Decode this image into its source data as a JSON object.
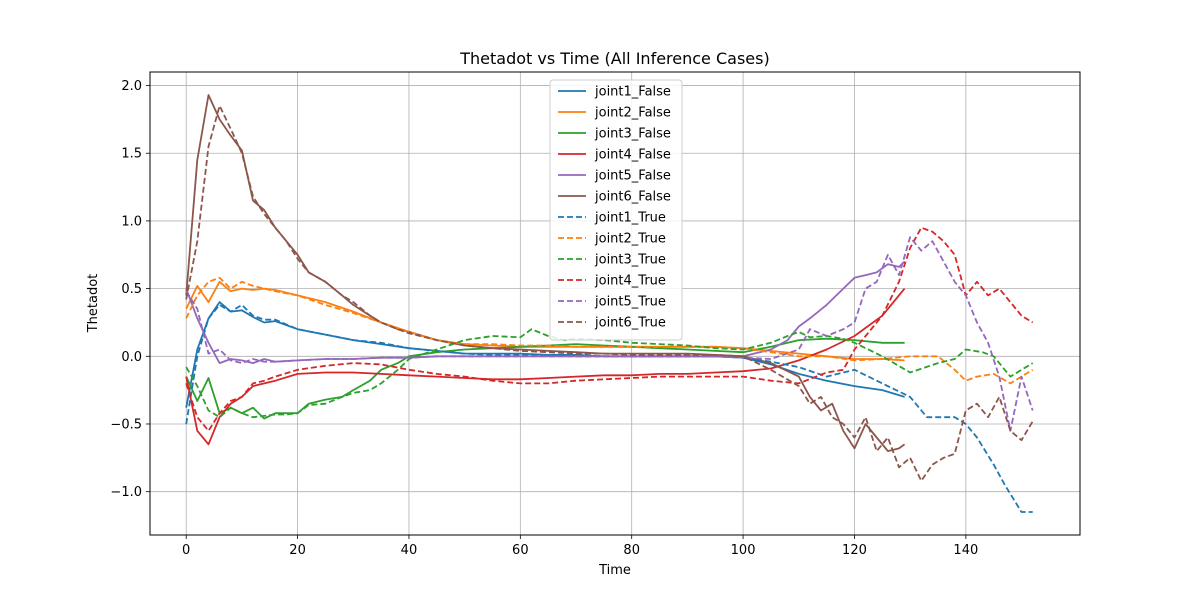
{
  "chart_data": {
    "type": "line",
    "title": "Thetadot vs Time (All Inference Cases)",
    "xlabel": "Time",
    "ylabel": "Thetadot",
    "xlim": [
      -6.5,
      160.5
    ],
    "ylim": [
      -1.32,
      2.1
    ],
    "xticks": [
      0,
      20,
      40,
      60,
      80,
      100,
      120,
      140
    ],
    "yticks": [
      -1.0,
      -0.5,
      0.0,
      0.5,
      1.0,
      1.5,
      2.0
    ],
    "xtick_labels": [
      "0",
      "20",
      "40",
      "60",
      "80",
      "100",
      "120",
      "140"
    ],
    "ytick_labels": [
      "−1.0",
      "−0.5",
      "0.0",
      "0.5",
      "1.0",
      "1.5",
      "2.0"
    ],
    "grid": true,
    "legend_position": "upper-center",
    "series": [
      {
        "name": "joint1_False",
        "color": "#1f77b4",
        "style": "solid",
        "x": [
          0,
          2,
          4,
          6,
          8,
          10,
          12,
          14,
          16,
          20,
          25,
          30,
          35,
          40,
          45,
          50,
          55,
          60,
          65,
          70,
          75,
          80,
          85,
          90,
          95,
          100,
          105,
          110,
          115,
          120,
          125,
          129
        ],
        "y": [
          -0.38,
          0.05,
          0.28,
          0.4,
          0.33,
          0.34,
          0.29,
          0.25,
          0.26,
          0.2,
          0.16,
          0.12,
          0.09,
          0.06,
          0.04,
          0.02,
          0.02,
          0.02,
          0.01,
          0.01,
          0.0,
          0.0,
          0.0,
          0.0,
          0.0,
          -0.01,
          -0.06,
          -0.13,
          -0.18,
          -0.22,
          -0.25,
          -0.3
        ]
      },
      {
        "name": "joint2_False",
        "color": "#ff7f0e",
        "style": "solid",
        "x": [
          0,
          2,
          4,
          6,
          8,
          10,
          12,
          14,
          16,
          20,
          25,
          30,
          35,
          40,
          45,
          50,
          55,
          60,
          65,
          70,
          75,
          80,
          85,
          90,
          95,
          100,
          105,
          110,
          115,
          120,
          125,
          129
        ],
        "y": [
          0.35,
          0.52,
          0.4,
          0.55,
          0.48,
          0.5,
          0.49,
          0.5,
          0.49,
          0.45,
          0.4,
          0.33,
          0.25,
          0.18,
          0.12,
          0.09,
          0.08,
          0.07,
          0.07,
          0.07,
          0.07,
          0.07,
          0.07,
          0.07,
          0.07,
          0.06,
          0.04,
          0.02,
          0.0,
          -0.02,
          -0.02,
          -0.03
        ]
      },
      {
        "name": "joint3_False",
        "color": "#2ca02c",
        "style": "solid",
        "x": [
          0,
          2,
          4,
          6,
          8,
          10,
          12,
          14,
          16,
          18,
          20,
          22,
          25,
          28,
          30,
          33,
          35,
          38,
          40,
          45,
          50,
          55,
          60,
          65,
          70,
          75,
          80,
          85,
          90,
          95,
          100,
          105,
          110,
          115,
          120,
          125,
          129
        ],
        "y": [
          -0.15,
          -0.33,
          -0.16,
          -0.42,
          -0.38,
          -0.42,
          -0.38,
          -0.46,
          -0.42,
          -0.42,
          -0.42,
          -0.35,
          -0.32,
          -0.3,
          -0.25,
          -0.18,
          -0.1,
          -0.05,
          0.0,
          0.03,
          0.05,
          0.06,
          0.07,
          0.08,
          0.09,
          0.08,
          0.07,
          0.06,
          0.05,
          0.04,
          0.03,
          0.07,
          0.12,
          0.13,
          0.12,
          0.1,
          0.1
        ]
      },
      {
        "name": "joint4_False",
        "color": "#d62728",
        "style": "solid",
        "x": [
          0,
          2,
          4,
          6,
          8,
          10,
          12,
          14,
          16,
          20,
          25,
          30,
          35,
          40,
          45,
          50,
          55,
          60,
          65,
          70,
          75,
          80,
          85,
          90,
          95,
          100,
          105,
          110,
          115,
          120,
          125,
          129
        ],
        "y": [
          -0.15,
          -0.55,
          -0.65,
          -0.45,
          -0.35,
          -0.3,
          -0.22,
          -0.2,
          -0.18,
          -0.13,
          -0.12,
          -0.12,
          -0.13,
          -0.14,
          -0.15,
          -0.16,
          -0.17,
          -0.17,
          -0.16,
          -0.15,
          -0.14,
          -0.14,
          -0.13,
          -0.13,
          -0.12,
          -0.11,
          -0.09,
          -0.03,
          0.05,
          0.15,
          0.3,
          0.5
        ]
      },
      {
        "name": "joint5_False",
        "color": "#9467bd",
        "style": "solid",
        "x": [
          0,
          2,
          4,
          6,
          8,
          10,
          12,
          14,
          16,
          20,
          25,
          30,
          35,
          40,
          45,
          50,
          55,
          60,
          65,
          70,
          75,
          80,
          85,
          90,
          95,
          100,
          105,
          108,
          110,
          112,
          115,
          118,
          120,
          122,
          124,
          126,
          128,
          129
        ],
        "y": [
          0.5,
          0.28,
          0.1,
          -0.05,
          -0.02,
          -0.03,
          -0.05,
          -0.02,
          -0.04,
          -0.03,
          -0.02,
          -0.02,
          -0.01,
          -0.01,
          0.0,
          0.0,
          0.0,
          0.0,
          0.0,
          0.0,
          0.0,
          0.0,
          0.0,
          0.0,
          0.0,
          0.0,
          0.05,
          0.12,
          0.22,
          0.28,
          0.38,
          0.5,
          0.58,
          0.6,
          0.62,
          0.68,
          0.66,
          0.7
        ]
      },
      {
        "name": "joint6_False",
        "color": "#8c564b",
        "style": "solid",
        "x": [
          0,
          2,
          4,
          6,
          8,
          10,
          12,
          14,
          16,
          18,
          20,
          22,
          25,
          28,
          30,
          33,
          35,
          38,
          40,
          45,
          50,
          55,
          60,
          65,
          70,
          75,
          80,
          85,
          90,
          95,
          100,
          105,
          110,
          112,
          114,
          116,
          118,
          120,
          122,
          124,
          126,
          128,
          129
        ],
        "y": [
          0.45,
          1.45,
          1.93,
          1.75,
          1.63,
          1.52,
          1.15,
          1.08,
          0.95,
          0.85,
          0.75,
          0.62,
          0.55,
          0.45,
          0.38,
          0.3,
          0.25,
          0.2,
          0.18,
          0.12,
          0.08,
          0.06,
          0.05,
          0.04,
          0.03,
          0.02,
          0.02,
          0.02,
          0.02,
          0.01,
          0.0,
          -0.05,
          -0.15,
          -0.3,
          -0.4,
          -0.35,
          -0.55,
          -0.68,
          -0.5,
          -0.6,
          -0.7,
          -0.68,
          -0.65
        ]
      },
      {
        "name": "joint1_True",
        "color": "#1f77b4",
        "style": "dashed",
        "x": [
          0,
          2,
          4,
          6,
          8,
          10,
          12,
          14,
          16,
          20,
          25,
          30,
          35,
          40,
          45,
          50,
          55,
          60,
          65,
          70,
          75,
          80,
          85,
          90,
          95,
          100,
          105,
          110,
          115,
          120,
          125,
          130,
          133,
          136,
          138,
          140,
          142,
          145,
          147,
          150,
          152
        ],
        "y": [
          -0.5,
          0.0,
          0.28,
          0.38,
          0.33,
          0.38,
          0.3,
          0.27,
          0.27,
          0.2,
          0.16,
          0.12,
          0.1,
          0.06,
          0.04,
          0.02,
          0.01,
          0.01,
          0.01,
          0.0,
          0.0,
          0.0,
          0.0,
          0.0,
          0.0,
          -0.01,
          -0.04,
          -0.08,
          -0.15,
          -0.1,
          -0.2,
          -0.3,
          -0.45,
          -0.45,
          -0.45,
          -0.5,
          -0.6,
          -0.8,
          -0.95,
          -1.15,
          -1.15
        ]
      },
      {
        "name": "joint2_True",
        "color": "#ff7f0e",
        "style": "dashed",
        "x": [
          0,
          2,
          4,
          6,
          8,
          10,
          12,
          14,
          16,
          20,
          25,
          30,
          35,
          40,
          45,
          50,
          55,
          60,
          65,
          70,
          75,
          80,
          85,
          90,
          95,
          100,
          105,
          110,
          115,
          120,
          125,
          130,
          135,
          138,
          140,
          142,
          145,
          148,
          150,
          152
        ],
        "y": [
          0.28,
          0.45,
          0.55,
          0.58,
          0.5,
          0.55,
          0.52,
          0.5,
          0.48,
          0.45,
          0.38,
          0.32,
          0.25,
          0.18,
          0.12,
          0.09,
          0.09,
          0.08,
          0.08,
          0.07,
          0.07,
          0.07,
          0.07,
          0.07,
          0.07,
          0.06,
          0.03,
          0.0,
          0.0,
          -0.03,
          -0.02,
          0.0,
          0.0,
          -0.1,
          -0.18,
          -0.15,
          -0.13,
          -0.2,
          -0.15,
          -0.1
        ]
      },
      {
        "name": "joint3_True",
        "color": "#2ca02c",
        "style": "dashed",
        "x": [
          0,
          2,
          4,
          6,
          8,
          10,
          12,
          14,
          16,
          18,
          20,
          22,
          25,
          28,
          30,
          33,
          35,
          38,
          40,
          45,
          50,
          55,
          60,
          62,
          65,
          68,
          70,
          75,
          80,
          85,
          90,
          95,
          100,
          105,
          108,
          110,
          112,
          115,
          118,
          120,
          125,
          130,
          135,
          138,
          140,
          143,
          145,
          148,
          150,
          152
        ],
        "y": [
          -0.08,
          -0.22,
          -0.4,
          -0.45,
          -0.38,
          -0.42,
          -0.45,
          -0.44,
          -0.43,
          -0.43,
          -0.42,
          -0.36,
          -0.35,
          -0.3,
          -0.27,
          -0.25,
          -0.2,
          -0.1,
          -0.02,
          0.05,
          0.12,
          0.15,
          0.14,
          0.2,
          0.15,
          0.12,
          0.13,
          0.12,
          0.1,
          0.09,
          0.08,
          0.06,
          0.05,
          0.1,
          0.15,
          0.18,
          0.14,
          0.15,
          0.13,
          0.1,
          0.0,
          -0.12,
          -0.05,
          -0.02,
          0.05,
          0.03,
          0.0,
          -0.15,
          -0.1,
          -0.05
        ]
      },
      {
        "name": "joint4_True",
        "color": "#d62728",
        "style": "dashed",
        "x": [
          0,
          2,
          4,
          6,
          8,
          10,
          12,
          14,
          16,
          20,
          25,
          30,
          35,
          40,
          45,
          50,
          55,
          60,
          65,
          70,
          75,
          80,
          85,
          90,
          95,
          100,
          105,
          110,
          115,
          118,
          120,
          122,
          125,
          128,
          130,
          132,
          134,
          136,
          138,
          140,
          142,
          144,
          146,
          148,
          150,
          152
        ],
        "y": [
          -0.2,
          -0.45,
          -0.55,
          -0.42,
          -0.33,
          -0.3,
          -0.2,
          -0.18,
          -0.15,
          -0.1,
          -0.07,
          -0.05,
          -0.06,
          -0.1,
          -0.13,
          -0.15,
          -0.18,
          -0.2,
          -0.2,
          -0.18,
          -0.17,
          -0.16,
          -0.15,
          -0.15,
          -0.15,
          -0.15,
          -0.18,
          -0.2,
          -0.12,
          -0.1,
          0.05,
          0.15,
          0.3,
          0.55,
          0.8,
          0.95,
          0.92,
          0.85,
          0.75,
          0.45,
          0.55,
          0.45,
          0.5,
          0.4,
          0.3,
          0.25
        ]
      },
      {
        "name": "joint5_True",
        "color": "#9467bd",
        "style": "dashed",
        "x": [
          0,
          2,
          4,
          6,
          8,
          10,
          12,
          14,
          16,
          20,
          25,
          30,
          35,
          40,
          45,
          50,
          55,
          60,
          65,
          70,
          75,
          80,
          85,
          90,
          95,
          100,
          105,
          110,
          112,
          115,
          118,
          120,
          122,
          124,
          126,
          128,
          130,
          132,
          134,
          136,
          138,
          140,
          142,
          144,
          146,
          148,
          150,
          152
        ],
        "y": [
          0.48,
          0.35,
          0.02,
          0.05,
          -0.03,
          -0.05,
          -0.02,
          -0.04,
          -0.04,
          -0.03,
          -0.02,
          -0.02,
          -0.01,
          -0.01,
          0.0,
          0.0,
          0.0,
          0.0,
          0.0,
          0.0,
          0.0,
          0.0,
          0.0,
          0.0,
          0.0,
          -0.01,
          -0.02,
          0.05,
          0.2,
          0.15,
          0.2,
          0.25,
          0.5,
          0.55,
          0.75,
          0.6,
          0.88,
          0.78,
          0.85,
          0.7,
          0.55,
          0.45,
          0.25,
          0.1,
          -0.15,
          -0.55,
          -0.15,
          -0.4
        ]
      },
      {
        "name": "joint6_True",
        "color": "#8c564b",
        "style": "dashed",
        "x": [
          0,
          2,
          4,
          6,
          8,
          10,
          12,
          14,
          16,
          18,
          20,
          22,
          25,
          28,
          30,
          33,
          35,
          38,
          40,
          45,
          50,
          55,
          60,
          65,
          70,
          75,
          80,
          85,
          90,
          95,
          100,
          105,
          110,
          112,
          114,
          116,
          118,
          120,
          122,
          124,
          126,
          128,
          130,
          132,
          134,
          136,
          138,
          140,
          142,
          144,
          146,
          148,
          150,
          152
        ],
        "y": [
          0.42,
          0.85,
          1.55,
          1.85,
          1.68,
          1.5,
          1.18,
          1.05,
          0.95,
          0.85,
          0.72,
          0.62,
          0.55,
          0.45,
          0.4,
          0.3,
          0.25,
          0.2,
          0.17,
          0.12,
          0.08,
          0.06,
          0.04,
          0.03,
          0.02,
          0.02,
          0.01,
          0.01,
          0.01,
          0.01,
          0.0,
          -0.1,
          -0.22,
          -0.35,
          -0.3,
          -0.45,
          -0.5,
          -0.6,
          -0.45,
          -0.7,
          -0.6,
          -0.82,
          -0.75,
          -0.92,
          -0.8,
          -0.75,
          -0.72,
          -0.4,
          -0.35,
          -0.45,
          -0.3,
          -0.55,
          -0.62,
          -0.48
        ]
      }
    ]
  }
}
